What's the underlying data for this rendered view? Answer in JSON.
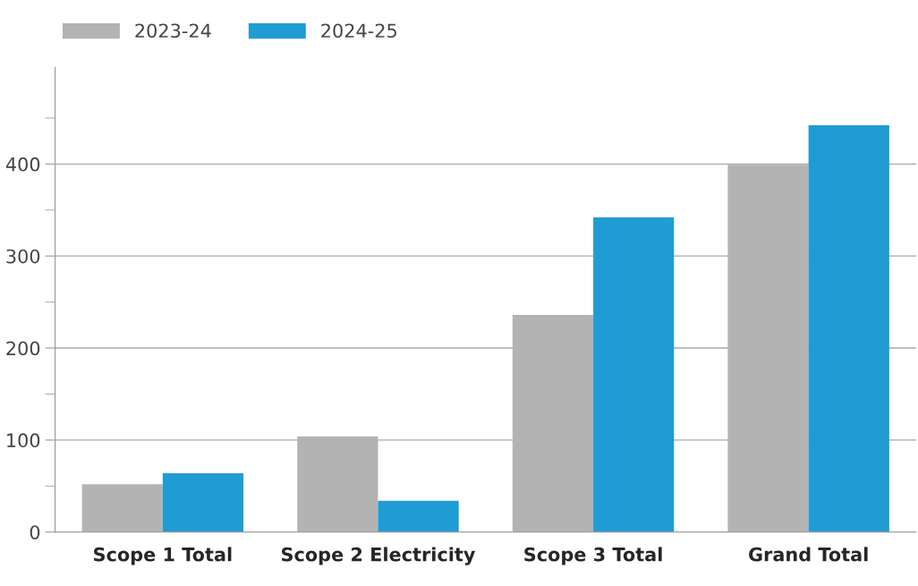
{
  "chart_data": {
    "type": "bar",
    "categories": [
      "Scope 1 Total",
      "Scope 2 Electricity",
      "Scope 3 Total",
      "Grand Total"
    ],
    "series": [
      {
        "name": "2023-24",
        "color": "#b3b3b3",
        "values": [
          52,
          104,
          236,
          399
        ]
      },
      {
        "name": "2024-25",
        "color": "#209cd5",
        "values": [
          64,
          34,
          342,
          442
        ]
      }
    ],
    "ylim": [
      0,
      505
    ],
    "yticks": [
      0,
      {
        "value": 50,
        "label": null
      },
      100,
      {
        "value": 150,
        "label": null
      },
      200,
      {
        "value": 250,
        "label": null
      },
      300,
      {
        "value": 350,
        "label": null
      },
      400,
      {
        "value": 450,
        "label": null
      }
    ],
    "grid": "y",
    "legend": "top left"
  }
}
